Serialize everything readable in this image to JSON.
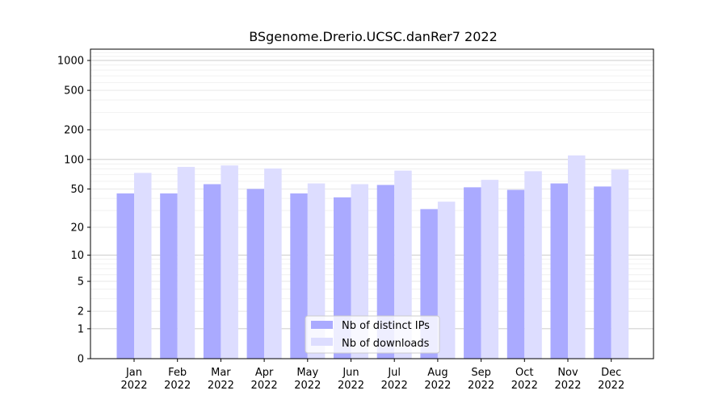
{
  "chart_data": {
    "type": "bar",
    "title": "BSgenome.Drerio.UCSC.danRer7 2022",
    "xlabel": "",
    "ylabel": "",
    "y_scale": "symlog",
    "ylim": [
      0,
      1300
    ],
    "y_ticks": [
      0,
      1,
      2,
      5,
      10,
      20,
      50,
      100,
      200,
      500,
      1000
    ],
    "y_tick_labels": [
      "0",
      "1",
      "2",
      "5",
      "10",
      "20",
      "50",
      "100",
      "200",
      "500",
      "1000"
    ],
    "grid": true,
    "legend_position": "bottom-center",
    "categories": [
      {
        "month": "Jan",
        "year": "2022"
      },
      {
        "month": "Feb",
        "year": "2022"
      },
      {
        "month": "Mar",
        "year": "2022"
      },
      {
        "month": "Apr",
        "year": "2022"
      },
      {
        "month": "May",
        "year": "2022"
      },
      {
        "month": "Jun",
        "year": "2022"
      },
      {
        "month": "Jul",
        "year": "2022"
      },
      {
        "month": "Aug",
        "year": "2022"
      },
      {
        "month": "Sep",
        "year": "2022"
      },
      {
        "month": "Oct",
        "year": "2022"
      },
      {
        "month": "Nov",
        "year": "2022"
      },
      {
        "month": "Dec",
        "year": "2022"
      }
    ],
    "series": [
      {
        "name": "Nb of distinct IPs",
        "color": "#aaaaff",
        "values": [
          45,
          45,
          56,
          50,
          45,
          41,
          55,
          31,
          52,
          49,
          57,
          53
        ]
      },
      {
        "name": "Nb of downloads",
        "color": "#ddddff",
        "values": [
          73,
          84,
          87,
          81,
          57,
          56,
          77,
          37,
          62,
          76,
          110,
          79
        ]
      }
    ]
  }
}
